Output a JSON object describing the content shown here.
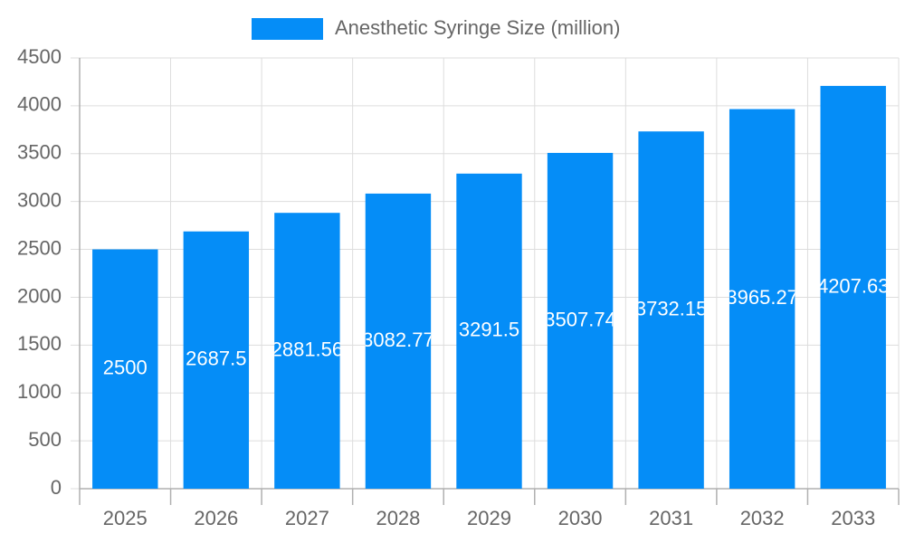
{
  "chart_data": {
    "type": "bar",
    "legend": "Anesthetic Syringe Size (million)",
    "categories": [
      "2025",
      "2026",
      "2027",
      "2028",
      "2029",
      "2030",
      "2031",
      "2032",
      "2033"
    ],
    "values": [
      2500,
      2687.5,
      2881.56,
      3082.77,
      3291.5,
      3507.74,
      3732.15,
      3965.27,
      4207.63
    ],
    "color": "#058df7",
    "ylim": [
      0,
      4500
    ],
    "yticks": [
      0,
      500,
      1000,
      1500,
      2000,
      2500,
      3000,
      3500,
      4000,
      4500
    ],
    "grid": true
  }
}
